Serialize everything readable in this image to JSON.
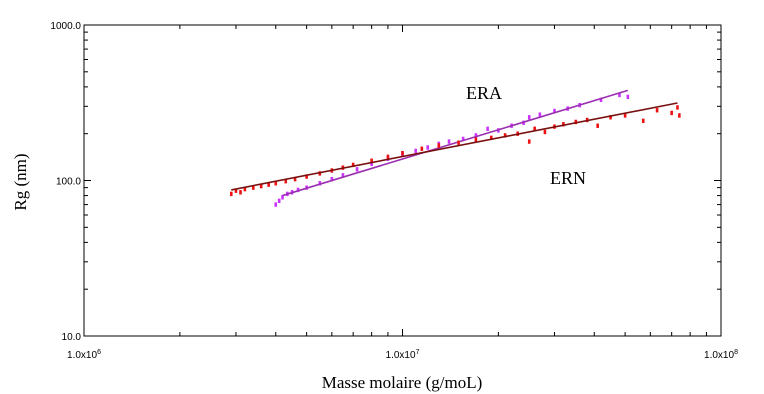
{
  "chart_data": {
    "type": "scatter",
    "x_scale": "log",
    "y_scale": "log",
    "xlim": [
      1000000,
      100000000
    ],
    "ylim": [
      10,
      1000
    ],
    "xlabel": "Masse molaire (g/moL)",
    "ylabel": "Rg (nm)",
    "x_ticks": [
      {
        "value": 1000000,
        "mant": "1.0x10",
        "exp": "6"
      },
      {
        "value": 10000000,
        "mant": "1.0x10",
        "exp": "7"
      },
      {
        "value": 100000000,
        "mant": "1.0x10",
        "exp": "8"
      }
    ],
    "y_ticks": [
      {
        "value": 10,
        "label": "10.0"
      },
      {
        "value": 100,
        "label": "100.0"
      },
      {
        "value": 1000,
        "label": "1000.0"
      }
    ],
    "grid": false,
    "series": [
      {
        "name": "ERA",
        "color": "#cc33ff",
        "line_color": "#9a2fb0",
        "fit": {
          "x": [
            4200000,
            51000000
          ],
          "y": [
            80,
            380
          ]
        },
        "points": [
          [
            4000000,
            70
          ],
          [
            4100000,
            74
          ],
          [
            4200000,
            78
          ],
          [
            4350000,
            82
          ],
          [
            4500000,
            84
          ],
          [
            4700000,
            87
          ],
          [
            5000000,
            90
          ],
          [
            5500000,
            96
          ],
          [
            6000000,
            102
          ],
          [
            6500000,
            108
          ],
          [
            7200000,
            118
          ],
          [
            8000000,
            128
          ],
          [
            9000000,
            138
          ],
          [
            10000000,
            148
          ],
          [
            11000000,
            155
          ],
          [
            12000000,
            163
          ],
          [
            13000000,
            172
          ],
          [
            14000000,
            178
          ],
          [
            15500000,
            185
          ],
          [
            17000000,
            195
          ],
          [
            18500000,
            215
          ],
          [
            20000000,
            210
          ],
          [
            22000000,
            225
          ],
          [
            24000000,
            235
          ],
          [
            25000000,
            255
          ],
          [
            27000000,
            265
          ],
          [
            30000000,
            280
          ],
          [
            33000000,
            290
          ],
          [
            36000000,
            305
          ],
          [
            42000000,
            330
          ],
          [
            48000000,
            355
          ],
          [
            51000000,
            345
          ]
        ]
      },
      {
        "name": "ERN",
        "color": "#ee1111",
        "line_color": "#7a0f0f",
        "fit": {
          "x": [
            2900000,
            73000000
          ],
          "y": [
            87,
            315
          ]
        },
        "points": [
          [
            2900000,
            82
          ],
          [
            3000000,
            86
          ],
          [
            3100000,
            84
          ],
          [
            3200000,
            88
          ],
          [
            3400000,
            90
          ],
          [
            3600000,
            92
          ],
          [
            3800000,
            94
          ],
          [
            4000000,
            96
          ],
          [
            4300000,
            99
          ],
          [
            4600000,
            102
          ],
          [
            5000000,
            106
          ],
          [
            5500000,
            111
          ],
          [
            6000000,
            116
          ],
          [
            6500000,
            121
          ],
          [
            7000000,
            126
          ],
          [
            8000000,
            134
          ],
          [
            9000000,
            142
          ],
          [
            10000000,
            150
          ],
          [
            11500000,
            160
          ],
          [
            13000000,
            168
          ],
          [
            15000000,
            175
          ],
          [
            17000000,
            183
          ],
          [
            19000000,
            188
          ],
          [
            21000000,
            195
          ],
          [
            23000000,
            200
          ],
          [
            25000000,
            178
          ],
          [
            26000000,
            215
          ],
          [
            28000000,
            205
          ],
          [
            30000000,
            222
          ],
          [
            32000000,
            230
          ],
          [
            35000000,
            238
          ],
          [
            38000000,
            245
          ],
          [
            41000000,
            225
          ],
          [
            45000000,
            255
          ],
          [
            50000000,
            262
          ],
          [
            57000000,
            242
          ],
          [
            63000000,
            283
          ],
          [
            70000000,
            272
          ],
          [
            73000000,
            295
          ],
          [
            74000000,
            262
          ]
        ]
      }
    ]
  }
}
